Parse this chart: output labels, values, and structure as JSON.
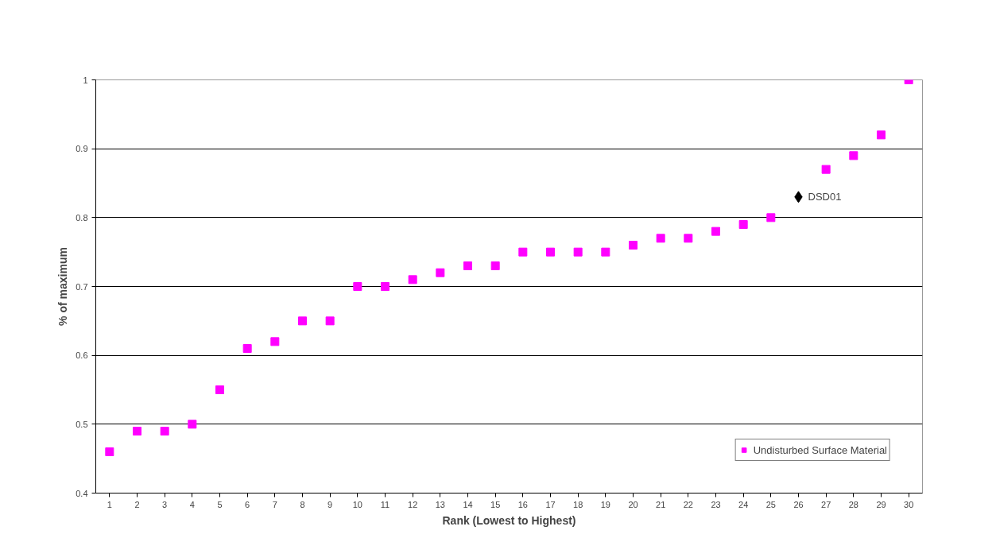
{
  "chart_data": {
    "type": "scatter",
    "xlabel": "Rank (Lowest to Highest)",
    "ylabel": "% of maximum",
    "x": [
      1,
      2,
      3,
      4,
      5,
      6,
      7,
      8,
      9,
      10,
      11,
      12,
      13,
      14,
      15,
      16,
      17,
      18,
      19,
      20,
      21,
      22,
      23,
      24,
      25,
      26,
      27,
      28,
      29,
      30
    ],
    "series": [
      {
        "name": "Undisturbed Surface Material",
        "color": "#ff00ff",
        "marker": "square",
        "values": [
          0.46,
          0.49,
          0.49,
          0.5,
          0.55,
          0.61,
          0.62,
          0.65,
          0.65,
          0.7,
          0.7,
          0.71,
          0.72,
          0.73,
          0.73,
          0.75,
          0.75,
          0.75,
          0.75,
          0.76,
          0.77,
          0.77,
          0.78,
          0.79,
          0.8,
          null,
          0.87,
          0.89,
          0.92,
          1.0
        ]
      },
      {
        "color": "#000000",
        "marker": "diamond",
        "values": [
          null,
          null,
          null,
          null,
          null,
          null,
          null,
          null,
          null,
          null,
          null,
          null,
          null,
          null,
          null,
          null,
          null,
          null,
          null,
          null,
          null,
          null,
          null,
          null,
          null,
          0.83,
          null,
          null,
          null,
          null
        ]
      }
    ],
    "annotations": [
      {
        "text": "DSD01",
        "x": 26,
        "y": 0.83
      }
    ],
    "xlim": [
      0.5,
      30.5
    ],
    "xticks": [
      1,
      2,
      3,
      4,
      5,
      6,
      7,
      8,
      9,
      10,
      11,
      12,
      13,
      14,
      15,
      16,
      17,
      18,
      19,
      20,
      21,
      22,
      23,
      24,
      25,
      26,
      27,
      28,
      29,
      30
    ],
    "ylim": [
      0.4,
      1
    ],
    "yticks": [
      0.4,
      0.5,
      0.6,
      0.7,
      0.8,
      0.9,
      1
    ],
    "grid": "y",
    "legend": "bottom right"
  }
}
